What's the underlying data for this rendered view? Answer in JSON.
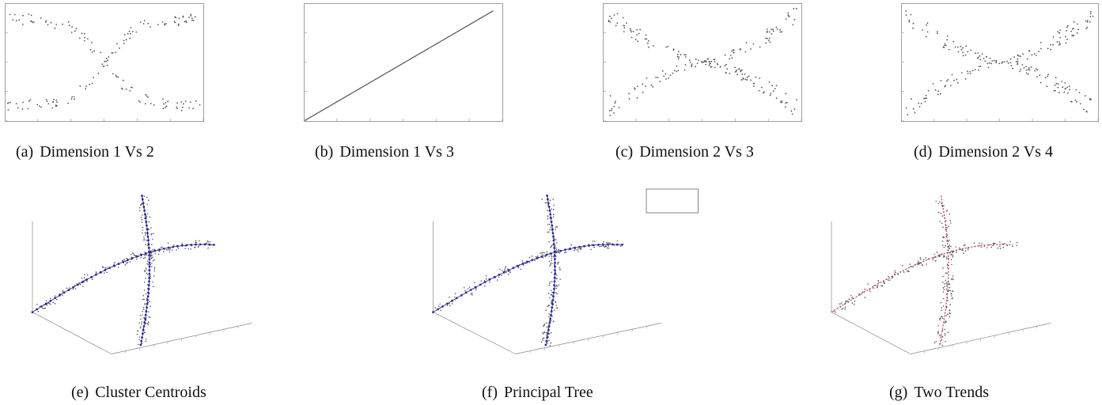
{
  "figure": {
    "panels": [
      {
        "id": "a",
        "tag": "(a)",
        "caption": "Dimension 1 Vs 2",
        "kind": "x-shape"
      },
      {
        "id": "b",
        "tag": "(b)",
        "caption": "Dimension 1 Vs 3",
        "kind": "diagonal"
      },
      {
        "id": "c",
        "tag": "(c)",
        "caption": "Dimension 2 Vs 3",
        "kind": "bowtie"
      },
      {
        "id": "d",
        "tag": "(d)",
        "caption": "Dimension 2 Vs 4",
        "kind": "bowtie"
      },
      {
        "id": "e",
        "tag": "(e)",
        "caption": "Cluster Centroids",
        "kind": "3d"
      },
      {
        "id": "f",
        "tag": "(f)",
        "caption": "Principal Tree",
        "kind": "3d"
      },
      {
        "id": "g",
        "tag": "(g)",
        "caption": "Two Trends",
        "kind": "3d"
      }
    ]
  },
  "colors": {
    "points": "#555555",
    "axes": "#888888",
    "centroid": "#2a2a9a",
    "trend": "#c03050"
  }
}
